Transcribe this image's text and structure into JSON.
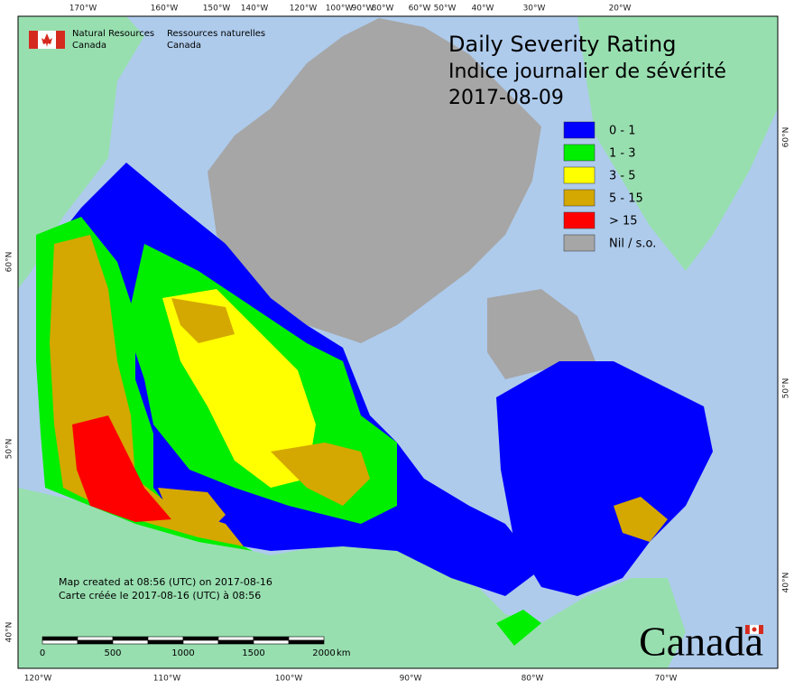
{
  "header": {
    "title": "Daily Severity Rating",
    "title_fr": "Indice journalier de sévérité",
    "date": "2017-08-09"
  },
  "agency": {
    "en": [
      "Natural Resources",
      "Canada"
    ],
    "fr": [
      "Ressources naturelles",
      "Canada"
    ]
  },
  "legend": [
    {
      "label": "0 - 1",
      "color": "#0000ff"
    },
    {
      "label": "1 - 3",
      "color": "#00ee00"
    },
    {
      "label": "3 - 5",
      "color": "#ffff00"
    },
    {
      "label": "5 - 15",
      "color": "#d4a800"
    },
    {
      "label": "> 15",
      "color": "#ff0000"
    },
    {
      "label": "Nil / s.o.",
      "color": "#a6a6a6"
    }
  ],
  "graticule": {
    "top": [
      "170°W",
      "160°W",
      "150°W",
      "140°W",
      "120°W",
      "100°W",
      "90°W",
      "80°W",
      "60°W",
      "50°W",
      "40°W",
      "30°W",
      "20°W"
    ],
    "bottom": [
      "120°W",
      "110°W",
      "100°W",
      "90°W",
      "80°W",
      "70°W"
    ],
    "left": [
      "60°N",
      "50°N",
      "40°N"
    ],
    "right": [
      "60°N",
      "50°N",
      "40°N"
    ]
  },
  "notes": [
    "Map created at 08:56 (UTC) on 2017-08-16",
    "Carte créée le 2017-08-16 (UTC) à 08:56"
  ],
  "scale_bar": {
    "labels": [
      "0",
      "500",
      "1000",
      "1500",
      "2000"
    ],
    "unit": "km"
  },
  "wordmark": "Canada"
}
